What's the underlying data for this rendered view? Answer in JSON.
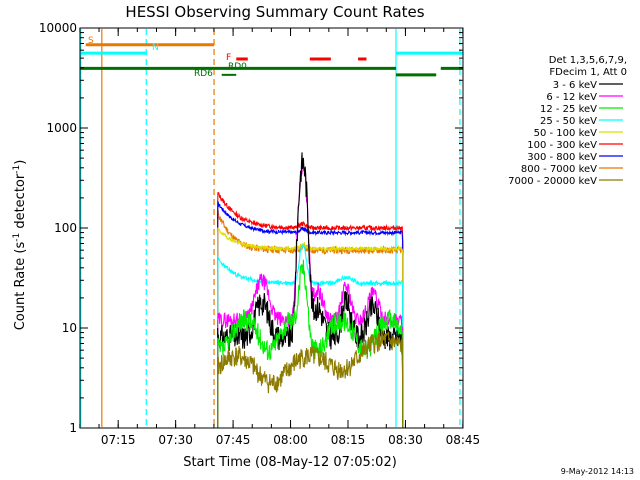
{
  "chart_data": {
    "type": "line",
    "title": "HESSI Observing Summary Count Rates",
    "xlabel": "Start Time (08-May-12 07:05:02)",
    "ylabel_main": "Count Rate (s",
    "ylabel_sup1": "-1",
    "ylabel_mid": " detector",
    "ylabel_sup2": "-1",
    "ylabel_end": ")",
    "y_scale": "log",
    "ylim": [
      1,
      10000
    ],
    "xlim_minutes": [
      0,
      100
    ],
    "x_ticks": [
      {
        "label": "07:15",
        "minute": 9.97
      },
      {
        "label": "07:30",
        "minute": 24.97
      },
      {
        "label": "07:45",
        "minute": 39.97
      },
      {
        "label": "08:00",
        "minute": 54.97
      },
      {
        "label": "08:15",
        "minute": 69.97
      },
      {
        "label": "08:30",
        "minute": 84.97
      },
      {
        "label": "08:45",
        "minute": 99.97
      }
    ],
    "y_ticks": [
      {
        "label": "1",
        "value": 1
      },
      {
        "label": "10",
        "value": 10
      },
      {
        "label": "100",
        "value": 100
      },
      {
        "label": "1000",
        "value": 1000
      },
      {
        "label": "10000",
        "value": 10000
      }
    ],
    "legend": {
      "title_lines": [
        "Det 1,3,5,6,7,9,",
        "FDecim 1, Att 0"
      ],
      "placement": "right"
    },
    "series": [
      {
        "name": "3 - 6 keV",
        "color": "#000000"
      },
      {
        "name": "6 - 12 keV",
        "color": "#ff00ff"
      },
      {
        "name": "12 - 25 keV",
        "color": "#00ee00"
      },
      {
        "name": "25 - 50 keV",
        "color": "#00ffff"
      },
      {
        "name": "50 - 100 keV",
        "color": "#dddd00"
      },
      {
        "name": "100 - 300 keV",
        "color": "#ff0000"
      },
      {
        "name": "300 - 800 keV",
        "color": "#0000ff"
      },
      {
        "name": "800 - 7000 keV",
        "color": "#e87800"
      },
      {
        "name": "7000 - 20000 keV",
        "color": "#8c7b00"
      }
    ],
    "annotations": [
      {
        "label": "S",
        "color": "#e87800"
      },
      {
        "label": "N",
        "color": "#00ffff"
      },
      {
        "label": "F",
        "color": "#ff0000"
      },
      {
        "label": "RD0",
        "color": "#007000"
      },
      {
        "label": "RD6",
        "color": "#007000"
      }
    ],
    "timestamp": "9-May-2012 14:13"
  }
}
